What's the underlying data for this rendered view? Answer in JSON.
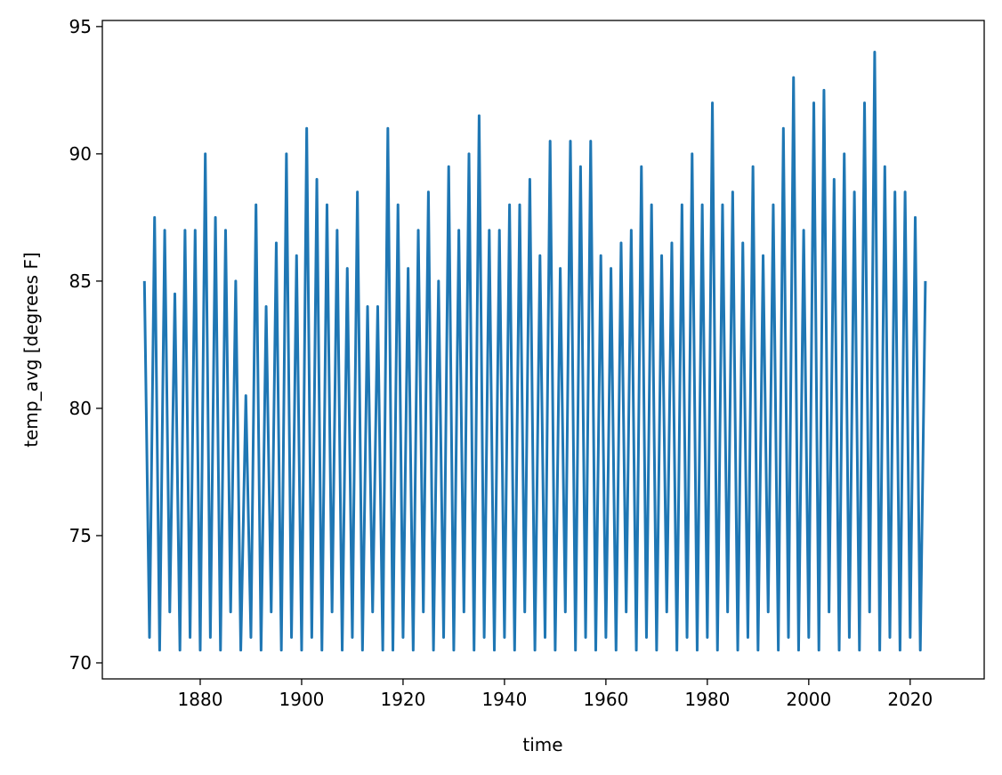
{
  "chart_data": {
    "type": "line",
    "xlabel": "time",
    "ylabel": "temp_avg [degrees F]",
    "xlim": [
      1860.7,
      2034.6
    ],
    "ylim": [
      69.37,
      95.24
    ],
    "xticks": [
      1880,
      1900,
      1920,
      1940,
      1960,
      1980,
      2000,
      2020
    ],
    "yticks": [
      70,
      75,
      80,
      85,
      90,
      95
    ],
    "x": [
      1869,
      1870,
      1871,
      1872,
      1873,
      1874,
      1875,
      1876,
      1877,
      1878,
      1879,
      1880,
      1881,
      1882,
      1883,
      1884,
      1885,
      1886,
      1887,
      1888,
      1889,
      1890,
      1891,
      1892,
      1893,
      1894,
      1895,
      1896,
      1897,
      1898,
      1899,
      1900,
      1901,
      1902,
      1903,
      1904,
      1905,
      1906,
      1907,
      1908,
      1909,
      1910,
      1911,
      1912,
      1913,
      1914,
      1915,
      1916,
      1917,
      1918,
      1919,
      1920,
      1921,
      1922,
      1923,
      1924,
      1925,
      1926,
      1927,
      1928,
      1929,
      1930,
      1931,
      1932,
      1933,
      1934,
      1935,
      1936,
      1937,
      1938,
      1939,
      1940,
      1941,
      1942,
      1943,
      1944,
      1945,
      1946,
      1947,
      1948,
      1949,
      1950,
      1951,
      1952,
      1953,
      1954,
      1955,
      1956,
      1957,
      1958,
      1959,
      1960,
      1961,
      1962,
      1963,
      1964,
      1965,
      1966,
      1967,
      1968,
      1969,
      1970,
      1971,
      1972,
      1973,
      1974,
      1975,
      1976,
      1977,
      1978,
      1979,
      1980,
      1981,
      1982,
      1983,
      1984,
      1985,
      1986,
      1987,
      1988,
      1989,
      1990,
      1991,
      1992,
      1993,
      1994,
      1995,
      1996,
      1997,
      1998,
      1999,
      2000,
      2001,
      2002,
      2003,
      2004,
      2005,
      2006,
      2007,
      2008,
      2009,
      2010,
      2011,
      2012,
      2013,
      2014,
      2015,
      2016,
      2017,
      2018,
      2019,
      2020,
      2021,
      2022,
      2023
    ],
    "series": [
      {
        "name": "temp_avg",
        "color": "#1f77b4",
        "values": [
          85,
          71,
          87.5,
          70.5,
          87,
          72,
          84.5,
          70.5,
          87,
          71,
          87,
          70.5,
          90,
          71,
          87.5,
          70.5,
          87,
          72,
          85,
          70.5,
          80.5,
          71,
          88,
          70.5,
          84,
          72,
          86.5,
          70.5,
          90,
          71,
          86,
          70.5,
          91,
          71,
          89,
          70.5,
          88,
          72,
          87,
          70.5,
          85.5,
          71,
          88.5,
          70.5,
          84,
          72,
          84,
          70.5,
          91,
          70.5,
          88,
          71,
          85.5,
          70.5,
          87,
          72,
          88.5,
          70.5,
          85,
          71,
          89.5,
          70.5,
          87,
          72,
          90,
          70.5,
          91.5,
          71,
          87,
          70.5,
          87,
          71,
          88,
          70.5,
          88,
          72,
          89,
          70.5,
          86,
          71,
          90.5,
          70.5,
          85.5,
          72,
          90.5,
          70.5,
          89.5,
          71,
          90.5,
          70.5,
          86,
          71,
          85.5,
          70.5,
          86.5,
          72,
          87,
          70.5,
          89.5,
          71,
          88,
          70.5,
          86,
          72,
          86.5,
          70.5,
          88,
          71,
          90,
          70.5,
          88,
          71,
          92,
          70.5,
          88,
          72,
          88.5,
          70.5,
          86.5,
          71,
          89.5,
          70.5,
          86,
          72,
          88,
          70.5,
          91,
          71,
          93,
          70.5,
          87,
          71,
          92,
          70.5,
          92.5,
          72,
          89,
          70.5,
          90,
          71,
          88.5,
          70.5,
          92,
          72,
          94,
          70.5,
          89.5,
          71,
          88.5,
          70.5,
          88.5,
          71,
          87.5,
          70.5,
          85
        ]
      }
    ]
  }
}
